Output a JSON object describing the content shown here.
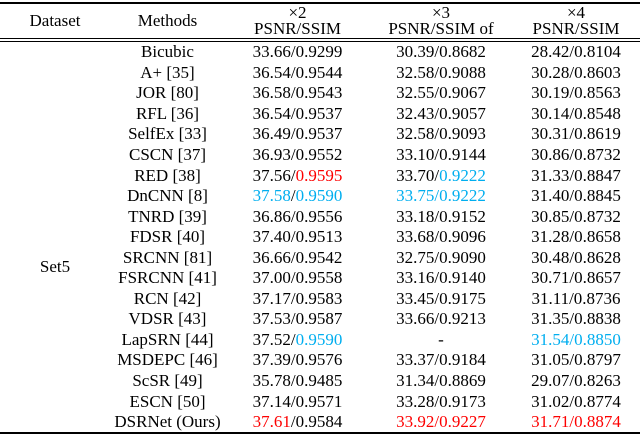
{
  "colors": {
    "text": "#000000",
    "best_red": "#fd0000",
    "second_cyan": "#00aeef",
    "map": {
      "k": "#000000",
      "r": "#fd0000",
      "c": "#00aeef"
    }
  },
  "table": {
    "dataset_label": "Set5",
    "header": {
      "dataset": "Dataset",
      "methods": "Methods",
      "scale_columns": [
        {
          "scale": "×2",
          "metric": "PSNR/SSIM"
        },
        {
          "scale": "×3",
          "metric": "PSNR/SSIM of"
        },
        {
          "scale": "×4",
          "metric": "PSNR/SSIM"
        }
      ]
    },
    "rows": [
      {
        "method": "Bicubic",
        "x2": [
          {
            "t": "33.66/0.9299",
            "c": "k"
          }
        ],
        "x3": [
          {
            "t": "30.39/0.8682",
            "c": "k"
          }
        ],
        "x4": [
          {
            "t": "28.42/0.8104",
            "c": "k"
          }
        ]
      },
      {
        "method": "A+ [35]",
        "x2": [
          {
            "t": "36.54/0.9544",
            "c": "k"
          }
        ],
        "x3": [
          {
            "t": "32.58/0.9088",
            "c": "k"
          }
        ],
        "x4": [
          {
            "t": "30.28/0.8603",
            "c": "k"
          }
        ]
      },
      {
        "method": "JOR [80]",
        "x2": [
          {
            "t": "36.58/0.9543",
            "c": "k"
          }
        ],
        "x3": [
          {
            "t": "32.55/0.9067",
            "c": "k"
          }
        ],
        "x4": [
          {
            "t": "30.19/0.8563",
            "c": "k"
          }
        ]
      },
      {
        "method": "RFL [36]",
        "x2": [
          {
            "t": "36.54/0.9537",
            "c": "k"
          }
        ],
        "x3": [
          {
            "t": "32.43/0.9057",
            "c": "k"
          }
        ],
        "x4": [
          {
            "t": "30.14/0.8548",
            "c": "k"
          }
        ]
      },
      {
        "method": "SelfEx [33]",
        "x2": [
          {
            "t": "36.49/0.9537",
            "c": "k"
          }
        ],
        "x3": [
          {
            "t": "32.58/0.9093",
            "c": "k"
          }
        ],
        "x4": [
          {
            "t": "30.31/0.8619",
            "c": "k"
          }
        ]
      },
      {
        "method": "CSCN [37]",
        "x2": [
          {
            "t": "36.93/0.9552",
            "c": "k"
          }
        ],
        "x3": [
          {
            "t": "33.10/0.9144",
            "c": "k"
          }
        ],
        "x4": [
          {
            "t": "30.86/0.8732",
            "c": "k"
          }
        ]
      },
      {
        "method": "RED [38]",
        "x2": [
          {
            "t": "37.56/",
            "c": "k"
          },
          {
            "t": "0.9595",
            "c": "r"
          }
        ],
        "x3": [
          {
            "t": "33.70/",
            "c": "k"
          },
          {
            "t": "0.9222",
            "c": "c"
          }
        ],
        "x4": [
          {
            "t": "31.33/0.8847",
            "c": "k"
          }
        ]
      },
      {
        "method": "DnCNN [8]",
        "x2": [
          {
            "t": "37.58",
            "c": "c"
          },
          {
            "t": "/",
            "c": "k"
          },
          {
            "t": "0.9590",
            "c": "c"
          }
        ],
        "x3": [
          {
            "t": "33.75/0.9222",
            "c": "c"
          }
        ],
        "x4": [
          {
            "t": "31.40/0.8845",
            "c": "k"
          }
        ]
      },
      {
        "method": "TNRD [39]",
        "x2": [
          {
            "t": "36.86/0.9556",
            "c": "k"
          }
        ],
        "x3": [
          {
            "t": "33.18/0.9152",
            "c": "k"
          }
        ],
        "x4": [
          {
            "t": "30.85/0.8732",
            "c": "k"
          }
        ]
      },
      {
        "method": "FDSR [40]",
        "x2": [
          {
            "t": "37.40/0.9513",
            "c": "k"
          }
        ],
        "x3": [
          {
            "t": "33.68/0.9096",
            "c": "k"
          }
        ],
        "x4": [
          {
            "t": "31.28/0.8658",
            "c": "k"
          }
        ]
      },
      {
        "method": "SRCNN [81]",
        "x2": [
          {
            "t": "36.66/0.9542",
            "c": "k"
          }
        ],
        "x3": [
          {
            "t": "32.75/0.9090",
            "c": "k"
          }
        ],
        "x4": [
          {
            "t": "30.48/0.8628",
            "c": "k"
          }
        ]
      },
      {
        "method": "FSRCNN [41]",
        "x2": [
          {
            "t": "37.00/0.9558",
            "c": "k"
          }
        ],
        "x3": [
          {
            "t": "33.16/0.9140",
            "c": "k"
          }
        ],
        "x4": [
          {
            "t": "30.71/0.8657",
            "c": "k"
          }
        ]
      },
      {
        "method": "RCN [42]",
        "x2": [
          {
            "t": "37.17/0.9583",
            "c": "k"
          }
        ],
        "x3": [
          {
            "t": "33.45/0.9175",
            "c": "k"
          }
        ],
        "x4": [
          {
            "t": "31.11/0.8736",
            "c": "k"
          }
        ]
      },
      {
        "method": "VDSR [43]",
        "x2": [
          {
            "t": "37.53/0.9587",
            "c": "k"
          }
        ],
        "x3": [
          {
            "t": "33.66/0.9213",
            "c": "k"
          }
        ],
        "x4": [
          {
            "t": "31.35/0.8838",
            "c": "k"
          }
        ]
      },
      {
        "method": "LapSRN [44]",
        "x2": [
          {
            "t": "37.52/",
            "c": "k"
          },
          {
            "t": "0.9590",
            "c": "c"
          }
        ],
        "x3": [
          {
            "t": "-",
            "c": "k"
          }
        ],
        "x4": [
          {
            "t": "31.54/0.8850",
            "c": "c"
          }
        ]
      },
      {
        "method": "MSDEPC [46]",
        "x2": [
          {
            "t": "37.39/0.9576",
            "c": "k"
          }
        ],
        "x3": [
          {
            "t": "33.37/0.9184",
            "c": "k"
          }
        ],
        "x4": [
          {
            "t": "31.05/0.8797",
            "c": "k"
          }
        ]
      },
      {
        "method": "ScSR [49]",
        "x2": [
          {
            "t": "35.78/0.9485",
            "c": "k"
          }
        ],
        "x3": [
          {
            "t": "31.34/0.8869",
            "c": "k"
          }
        ],
        "x4": [
          {
            "t": "29.07/0.8263",
            "c": "k"
          }
        ]
      },
      {
        "method": "ESCN [50]",
        "x2": [
          {
            "t": "37.14/0.9571",
            "c": "k"
          }
        ],
        "x3": [
          {
            "t": "33.28/0.9173",
            "c": "k"
          }
        ],
        "x4": [
          {
            "t": "31.02/0.8774",
            "c": "k"
          }
        ]
      },
      {
        "method": "DSRNet (Ours)",
        "x2": [
          {
            "t": "37.61",
            "c": "r"
          },
          {
            "t": "/0.9584",
            "c": "k"
          }
        ],
        "x3": [
          {
            "t": "33.92/0.9227",
            "c": "r"
          }
        ],
        "x4": [
          {
            "t": "31.71/0.8874",
            "c": "r"
          }
        ]
      }
    ]
  }
}
